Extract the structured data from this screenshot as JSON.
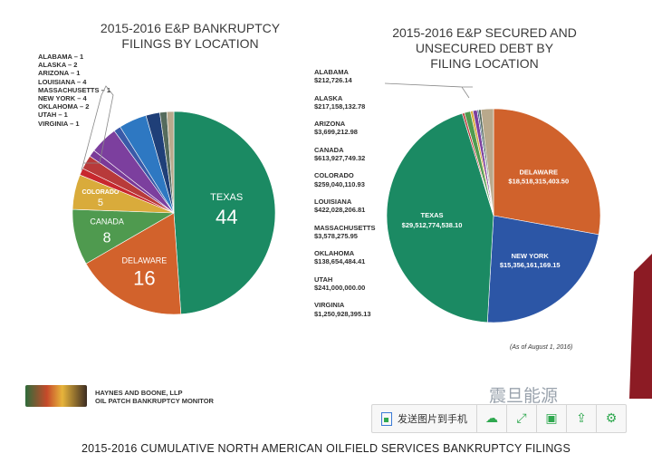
{
  "left_chart_title": "2015-2016 E&P BANKRUPTCY\nFILINGS BY LOCATION",
  "right_chart_title": "2015-2016 E&P SECURED AND\nUNSECURED DEBT BY\nFILING LOCATION",
  "left_small_list": [
    "ALABAMA – 1",
    "ALASKA – 2",
    "ARIZONA – 1",
    "LOUISIANA – 4",
    "MASSACHUSETTS – 1",
    "NEW YORK – 4",
    "OKLAHOMA – 2",
    "UTAH – 1",
    "VIRGINIA – 1"
  ],
  "right_small_list": [
    {
      "name": "ALABAMA",
      "value": "$212,726.14"
    },
    {
      "name": "ALASKA",
      "value": "$217,158,132.78"
    },
    {
      "name": "ARIZONA",
      "value": "$3,699,212.98"
    },
    {
      "name": "CANADA",
      "value": "$613,927,749.32"
    },
    {
      "name": "COLORADO",
      "value": "$259,040,110.93"
    },
    {
      "name": "LOUISIANA",
      "value": "$422,028,206.81"
    },
    {
      "name": "MASSACHUSETTS",
      "value": "$3,578,275.95"
    },
    {
      "name": "OKLAHOMA",
      "value": "$138,654,484.41"
    },
    {
      "name": "UTAH",
      "value": "$241,000,000.00"
    },
    {
      "name": "VIRGINIA",
      "value": "$1,250,928,395.13"
    }
  ],
  "as_of": "(As of August 1, 2016)",
  "firm_name": "HAYNES AND BOONE, LLP",
  "monitor_name": "OIL PATCH BANKRUPTCY MONITOR",
  "bottom_caption": "2015-2016 CUMULATIVE NORTH AMERICAN OILFIELD SERVICES BANKRUPTCY FILINGS",
  "watermark": "震旦能源",
  "toolbar": {
    "send_label": "发送图片到手机",
    "icons": [
      "cloud-icon",
      "expand-icon",
      "save-icon",
      "share-icon",
      "settings-icon"
    ]
  },
  "chart_data": [
    {
      "type": "pie",
      "title": "2015-2016 E&P BANKRUPTCY FILINGS BY LOCATION",
      "slices": [
        {
          "label": "TEXAS",
          "value": 44,
          "color": "#1b8a63"
        },
        {
          "label": "DELAWARE",
          "value": 16,
          "color": "#d2622c"
        },
        {
          "label": "CANADA",
          "value": 8,
          "color": "#4f9a4f"
        },
        {
          "label": "COLORADO",
          "value": 5,
          "color": "#d9ab3b"
        },
        {
          "label": "ALABAMA",
          "value": 1,
          "color": "#c8282e"
        },
        {
          "label": "ALASKA",
          "value": 2,
          "color": "#b83a3a"
        },
        {
          "label": "ARIZONA",
          "value": 1,
          "color": "#7a3a98"
        },
        {
          "label": "LOUISIANA",
          "value": 4,
          "color": "#7c3f9e"
        },
        {
          "label": "MASSACHUSETTS",
          "value": 1,
          "color": "#3a5aa8"
        },
        {
          "label": "NEW YORK",
          "value": 4,
          "color": "#2e78c2"
        },
        {
          "label": "OKLAHOMA",
          "value": 2,
          "color": "#1f3f78"
        },
        {
          "label": "UTAH",
          "value": 1,
          "color": "#556b5c"
        },
        {
          "label": "VIRGINIA",
          "value": 1,
          "color": "#b9a98c"
        }
      ]
    },
    {
      "type": "pie",
      "title": "2015-2016 E&P SECURED AND UNSECURED DEBT BY FILING LOCATION",
      "slices": [
        {
          "label": "DELAWARE",
          "value": 18518315403.5,
          "display": "$18,518,315,403.50",
          "color": "#d0622c"
        },
        {
          "label": "NEW YORK",
          "value": 15356161169.15,
          "display": "$15,356,161,169.15",
          "color": "#2c56a6"
        },
        {
          "label": "TEXAS",
          "value": 29512774538.1,
          "display": "$29,512,774,538.10",
          "color": "#1b8a63"
        },
        {
          "label": "ALABAMA",
          "value": 212726.14,
          "color": "#c8282e"
        },
        {
          "label": "ALASKA",
          "value": 217158132.78,
          "color": "#b83a3a"
        },
        {
          "label": "ARIZONA",
          "value": 3699212.98,
          "color": "#7a3a98"
        },
        {
          "label": "CANADA",
          "value": 613927749.32,
          "color": "#4f9a4f"
        },
        {
          "label": "COLORADO",
          "value": 259040110.93,
          "color": "#d9ab3b"
        },
        {
          "label": "LOUISIANA",
          "value": 422028206.81,
          "color": "#7c3f9e"
        },
        {
          "label": "MASSACHUSETTS",
          "value": 3578275.95,
          "color": "#3a5aa8"
        },
        {
          "label": "OKLAHOMA",
          "value": 138654484.41,
          "color": "#1f3f78"
        },
        {
          "label": "UTAH",
          "value": 241000000.0,
          "color": "#556b5c"
        },
        {
          "label": "VIRGINIA",
          "value": 1250928395.13,
          "color": "#b9a98c"
        }
      ]
    }
  ]
}
